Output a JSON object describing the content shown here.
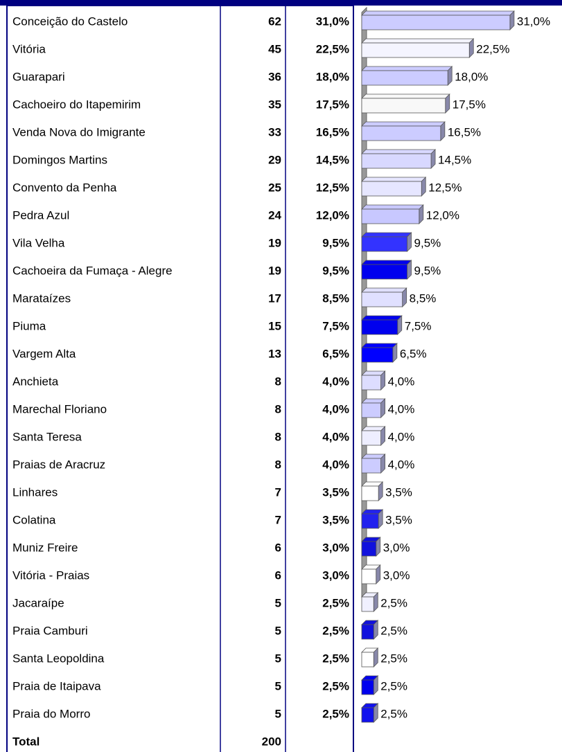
{
  "chart_data": {
    "type": "bar",
    "categories": [
      "Conceição do Castelo",
      "Vitória",
      "Guarapari",
      "Cachoeiro do Itapemirim",
      "Venda Nova do Imigrante",
      "Domingos Martins",
      "Convento da Penha",
      "Pedra Azul",
      "Vila Velha",
      "Cachoeira da Fumaça - Alegre",
      "Marataízes",
      "Piuma",
      "Vargem Alta",
      "Anchieta",
      "Marechal Floriano",
      "Santa Teresa",
      "Praias de Aracruz",
      "Linhares",
      "Colatina",
      "Muniz Freire",
      "Vitória - Praias",
      "Jacaraípe",
      "Praia Camburi",
      "Santa Leopoldina",
      "Praia de Itaipava",
      "Praia do Morro"
    ],
    "counts": [
      62,
      45,
      36,
      35,
      33,
      29,
      25,
      24,
      19,
      19,
      17,
      15,
      13,
      8,
      8,
      8,
      8,
      7,
      7,
      6,
      6,
      5,
      5,
      5,
      5,
      5
    ],
    "values": [
      31.0,
      22.5,
      18.0,
      17.5,
      16.5,
      14.5,
      12.5,
      12.0,
      9.5,
      9.5,
      8.5,
      7.5,
      6.5,
      4.0,
      4.0,
      4.0,
      4.0,
      3.5,
      3.5,
      3.0,
      3.0,
      2.5,
      2.5,
      2.5,
      2.5,
      2.5
    ],
    "value_labels": [
      "31,0%",
      "22,5%",
      "18,0%",
      "17,5%",
      "16,5%",
      "14,5%",
      "12,5%",
      "12,0%",
      "9,5%",
      "9,5%",
      "8,5%",
      "7,5%",
      "6,5%",
      "4,0%",
      "4,0%",
      "4,0%",
      "4,0%",
      "3,5%",
      "3,5%",
      "3,0%",
      "3,0%",
      "2,5%",
      "2,5%",
      "2,5%",
      "2,5%",
      "2,5%"
    ],
    "colors": [
      "#ccccff",
      "#f4f4ff",
      "#ccccff",
      "#f8f8f8",
      "#ccccff",
      "#d8d8ff",
      "#e6e6ff",
      "#c8c8ff",
      "#3333ff",
      "#0000ee",
      "#e0e0ff",
      "#0000ee",
      "#0000ff",
      "#ddddff",
      "#ccccff",
      "#eeeeff",
      "#ccccff",
      "#ffffff",
      "#2222ee",
      "#1111dd",
      "#ffffff",
      "#f0f0ff",
      "#1111dd",
      "#ffffff",
      "#0000ee",
      "#1111ee"
    ],
    "total_label": "Total",
    "total": 200
  }
}
